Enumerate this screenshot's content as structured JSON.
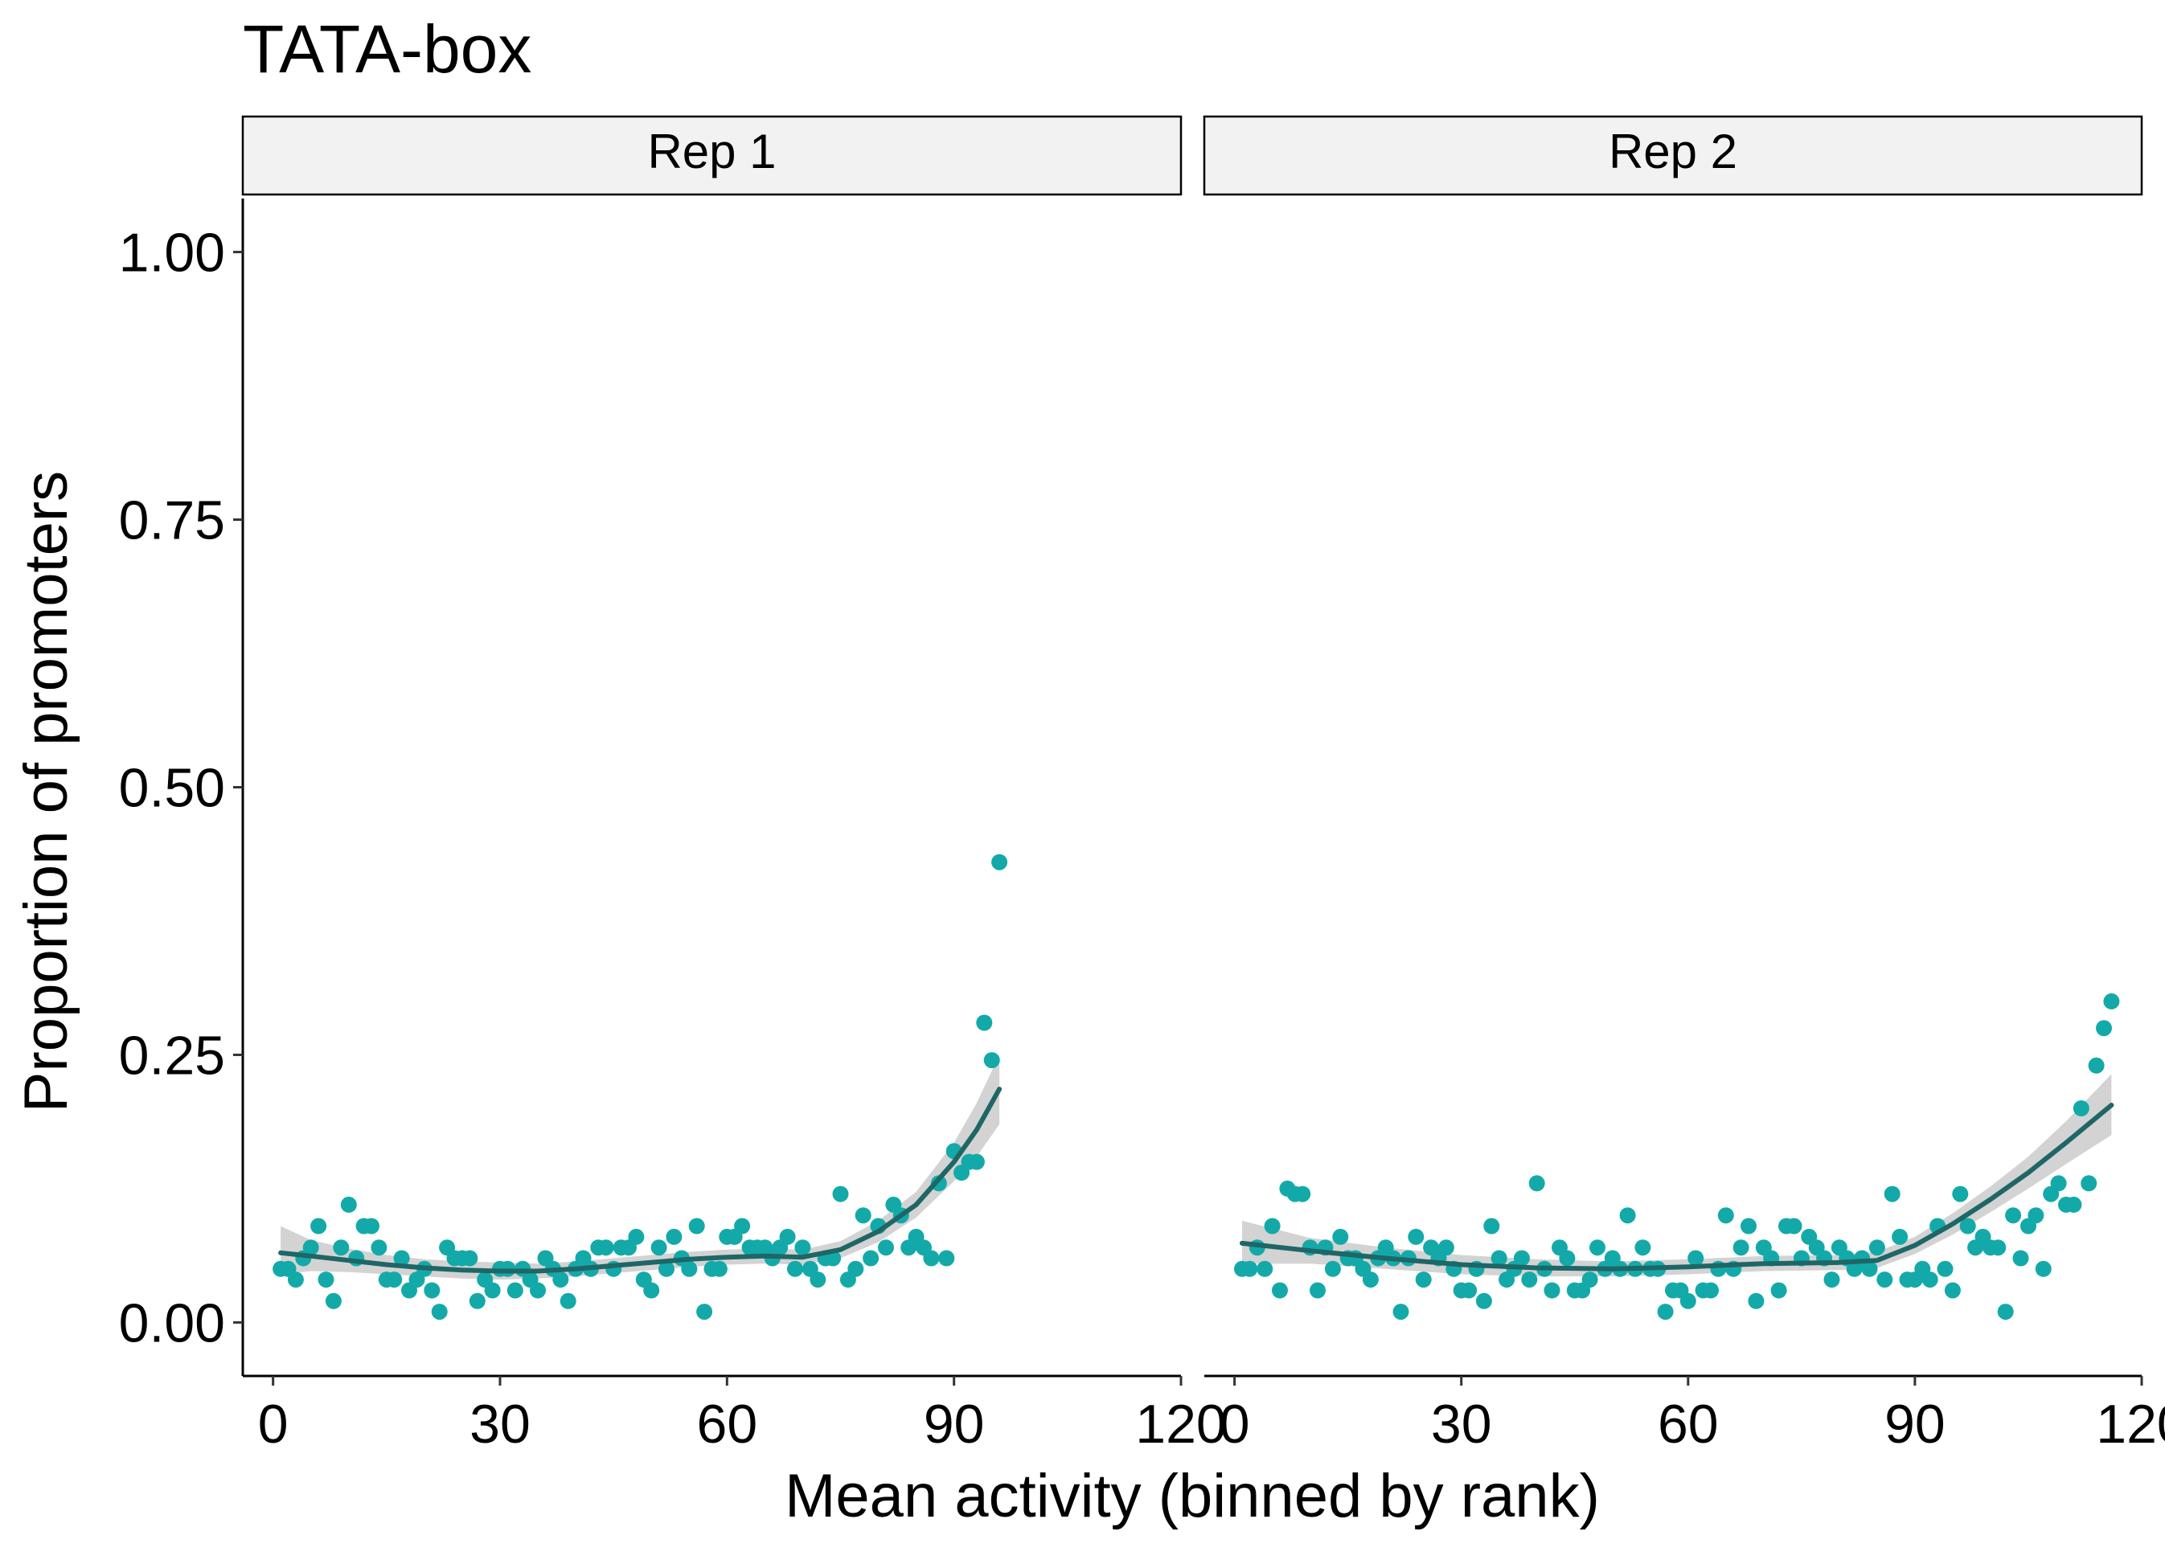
{
  "chart_data": {
    "type": "scatter",
    "title": "TATA-box",
    "xlabel": "Mean activity (binned by rank)",
    "ylabel": "Proportion of promoters",
    "xlim": [
      -4,
      120
    ],
    "ylim": [
      -0.05,
      1.05
    ],
    "x_ticks": [
      0,
      30,
      60,
      90,
      120
    ],
    "x_tick_labels": [
      "0",
      "30",
      "60",
      "90",
      "120"
    ],
    "y_ticks": [
      0,
      0.25,
      0.5,
      0.75,
      1.0
    ],
    "y_tick_labels": [
      "0.00",
      "0.25",
      "0.50",
      "0.75",
      "1.00"
    ],
    "grid": false,
    "legend": "none",
    "colors": {
      "points": "#14a9a9",
      "smooth_line": "#1f6666",
      "ribbon": "#c8c8c8",
      "strip_fill": "#f2f2f2"
    },
    "panels": [
      {
        "strip_label": "Rep 1",
        "points": {
          "x": [
            1,
            2,
            3,
            4,
            5,
            6,
            7,
            8,
            9,
            10,
            11,
            12,
            13,
            14,
            15,
            16,
            17,
            18,
            19,
            20,
            21,
            22,
            23,
            24,
            25,
            26,
            27,
            28,
            29,
            30,
            31,
            32,
            33,
            34,
            35,
            36,
            37,
            38,
            39,
            40,
            41,
            42,
            43,
            44,
            45,
            46,
            47,
            48,
            49,
            50,
            51,
            52,
            53,
            54,
            55,
            56,
            57,
            58,
            59,
            60,
            61,
            62,
            63,
            64,
            65,
            66,
            67,
            68,
            69,
            70,
            71,
            72,
            73,
            74,
            75,
            76,
            77,
            78,
            79,
            80,
            81,
            82,
            83,
            84,
            85,
            86,
            87,
            88,
            89,
            90,
            91,
            92,
            93,
            94,
            95,
            96
          ],
          "y": [
            0.05,
            0.05,
            0.04,
            0.06,
            0.07,
            0.09,
            0.04,
            0.02,
            0.07,
            0.11,
            0.06,
            0.09,
            0.09,
            0.07,
            0.04,
            0.04,
            0.06,
            0.03,
            0.04,
            0.05,
            0.03,
            0.01,
            0.07,
            0.06,
            0.06,
            0.06,
            0.02,
            0.04,
            0.03,
            0.05,
            0.05,
            0.03,
            0.05,
            0.04,
            0.03,
            0.06,
            0.05,
            0.04,
            0.02,
            0.05,
            0.06,
            0.05,
            0.07,
            0.07,
            0.05,
            0.07,
            0.07,
            0.08,
            0.04,
            0.03,
            0.07,
            0.05,
            0.08,
            0.06,
            0.05,
            0.09,
            0.01,
            0.05,
            0.05,
            0.08,
            0.08,
            0.09,
            0.07,
            0.07,
            0.07,
            0.06,
            0.07,
            0.08,
            0.05,
            0.07,
            0.05,
            0.04,
            0.06,
            0.06,
            0.12,
            0.04,
            0.05,
            0.1,
            0.06,
            0.09,
            0.07,
            0.11,
            0.1,
            0.07,
            0.08,
            0.07,
            0.06,
            0.13,
            0.06,
            0.16,
            0.14,
            0.15,
            0.15,
            0.28,
            0.245,
            0.43
          ]
        },
        "smooth": {
          "x": [
            1,
            5,
            10,
            15,
            20,
            25,
            30,
            35,
            40,
            45,
            50,
            55,
            60,
            65,
            70,
            75,
            80,
            85,
            90,
            93,
            96
          ],
          "y": [
            0.065,
            0.062,
            0.058,
            0.054,
            0.051,
            0.049,
            0.048,
            0.048,
            0.05,
            0.053,
            0.056,
            0.059,
            0.061,
            0.062,
            0.061,
            0.068,
            0.085,
            0.11,
            0.15,
            0.18,
            0.218
          ],
          "lower": [
            0.045,
            0.048,
            0.047,
            0.045,
            0.043,
            0.041,
            0.04,
            0.041,
            0.043,
            0.046,
            0.049,
            0.052,
            0.054,
            0.055,
            0.054,
            0.06,
            0.075,
            0.098,
            0.132,
            0.155,
            0.185
          ],
          "upper": [
            0.09,
            0.077,
            0.069,
            0.063,
            0.059,
            0.057,
            0.056,
            0.055,
            0.057,
            0.06,
            0.063,
            0.066,
            0.068,
            0.069,
            0.068,
            0.076,
            0.095,
            0.122,
            0.168,
            0.205,
            0.25
          ]
        }
      },
      {
        "strip_label": "Rep 2",
        "points": {
          "x": [
            1,
            2,
            3,
            4,
            5,
            6,
            7,
            8,
            9,
            10,
            11,
            12,
            13,
            14,
            15,
            16,
            17,
            18,
            19,
            20,
            21,
            22,
            23,
            24,
            25,
            26,
            27,
            28,
            29,
            30,
            31,
            32,
            33,
            34,
            35,
            36,
            37,
            38,
            39,
            40,
            41,
            42,
            43,
            44,
            45,
            46,
            47,
            48,
            49,
            50,
            51,
            52,
            53,
            54,
            55,
            56,
            57,
            58,
            59,
            60,
            61,
            62,
            63,
            64,
            65,
            66,
            67,
            68,
            69,
            70,
            71,
            72,
            73,
            74,
            75,
            76,
            77,
            78,
            79,
            80,
            81,
            82,
            83,
            84,
            85,
            86,
            87,
            88,
            89,
            90,
            91,
            92,
            93,
            94,
            95,
            96,
            97,
            98,
            99,
            100,
            101,
            102,
            103,
            104,
            105,
            106,
            107,
            108,
            109,
            110,
            111,
            112,
            113,
            114,
            115,
            116
          ],
          "y": [
            0.05,
            0.05,
            0.07,
            0.05,
            0.09,
            0.03,
            0.125,
            0.12,
            0.12,
            0.07,
            0.03,
            0.07,
            0.05,
            0.08,
            0.06,
            0.06,
            0.05,
            0.04,
            0.06,
            0.07,
            0.06,
            0.01,
            0.06,
            0.08,
            0.04,
            0.07,
            0.06,
            0.07,
            0.05,
            0.03,
            0.03,
            0.05,
            0.02,
            0.09,
            0.06,
            0.04,
            0.05,
            0.06,
            0.04,
            0.13,
            0.05,
            0.03,
            0.07,
            0.06,
            0.03,
            0.03,
            0.04,
            0.07,
            0.05,
            0.06,
            0.05,
            0.1,
            0.05,
            0.07,
            0.05,
            0.05,
            0.01,
            0.03,
            0.03,
            0.02,
            0.06,
            0.03,
            0.03,
            0.05,
            0.1,
            0.05,
            0.07,
            0.09,
            0.02,
            0.07,
            0.06,
            0.03,
            0.09,
            0.09,
            0.06,
            0.08,
            0.07,
            0.06,
            0.04,
            0.07,
            0.06,
            0.05,
            0.06,
            0.05,
            0.07,
            0.04,
            0.12,
            0.08,
            0.04,
            0.04,
            0.05,
            0.04,
            0.09,
            0.05,
            0.03,
            0.12,
            0.09,
            0.07,
            0.08,
            0.07,
            0.07,
            0.01,
            0.1,
            0.06,
            0.09,
            0.1,
            0.05,
            0.12,
            0.13,
            0.11,
            0.11,
            0.2,
            0.13,
            0.24,
            0.275,
            0.3
          ]
        },
        "smooth": {
          "x": [
            1,
            10,
            20,
            30,
            40,
            50,
            60,
            70,
            80,
            85,
            90,
            95,
            100,
            105,
            110,
            116
          ],
          "y": [
            0.074,
            0.067,
            0.06,
            0.054,
            0.051,
            0.05,
            0.052,
            0.055,
            0.056,
            0.058,
            0.072,
            0.092,
            0.115,
            0.14,
            0.168,
            0.203
          ],
          "lower": [
            0.055,
            0.055,
            0.05,
            0.045,
            0.043,
            0.043,
            0.045,
            0.048,
            0.049,
            0.051,
            0.064,
            0.082,
            0.103,
            0.125,
            0.148,
            0.175
          ],
          "upper": [
            0.095,
            0.079,
            0.07,
            0.063,
            0.059,
            0.057,
            0.059,
            0.062,
            0.063,
            0.066,
            0.08,
            0.102,
            0.127,
            0.155,
            0.188,
            0.232
          ]
        }
      }
    ]
  }
}
